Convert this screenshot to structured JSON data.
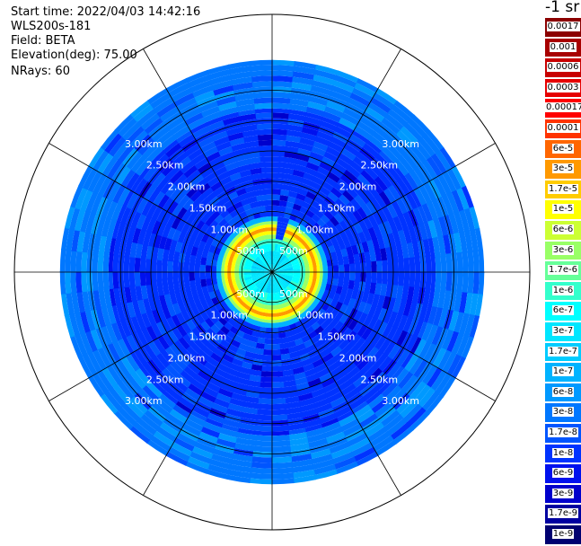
{
  "header": {
    "start_time": "Start time: 2022/04/03 14:42:16",
    "instrument": "WLS200s-181",
    "field": "Field: BETA",
    "elevation": "Elevation(deg): 75.00",
    "nrays": "NRays: 60"
  },
  "colorbar": {
    "units_label": "-1 sr",
    "levels": [
      {
        "label": "0.0017",
        "color": "#8b0000"
      },
      {
        "label": "0.001",
        "color": "#a80000"
      },
      {
        "label": "0.0006",
        "color": "#c80000"
      },
      {
        "label": "0.0003",
        "color": "#e60000"
      },
      {
        "label": "0.00017",
        "color": "#ff0000"
      },
      {
        "label": "0.0001",
        "color": "#ff3300"
      },
      {
        "label": "6e-5",
        "color": "#ff6600"
      },
      {
        "label": "3e-5",
        "color": "#ff9900"
      },
      {
        "label": "1.7e-5",
        "color": "#ffcc00"
      },
      {
        "label": "1e-5",
        "color": "#ffff00"
      },
      {
        "label": "6e-6",
        "color": "#ccff33"
      },
      {
        "label": "3e-6",
        "color": "#99ff66"
      },
      {
        "label": "1.7e-6",
        "color": "#66ff99"
      },
      {
        "label": "1e-6",
        "color": "#33ffcc"
      },
      {
        "label": "6e-7",
        "color": "#00ffff"
      },
      {
        "label": "3e-7",
        "color": "#00e6ff"
      },
      {
        "label": "1.7e-7",
        "color": "#00ccff"
      },
      {
        "label": "1e-7",
        "color": "#00b3ff"
      },
      {
        "label": "6e-8",
        "color": "#0099ff"
      },
      {
        "label": "3e-8",
        "color": "#0077ff"
      },
      {
        "label": "1.7e-8",
        "color": "#0055ff"
      },
      {
        "label": "1e-8",
        "color": "#0033ff"
      },
      {
        "label": "6e-9",
        "color": "#0011ee"
      },
      {
        "label": "3e-9",
        "color": "#0000cc"
      },
      {
        "label": "1.7e-9",
        "color": "#0000a0"
      },
      {
        "label": "1e-9",
        "color": "#000070"
      }
    ]
  },
  "chart_data": {
    "type": "heatmap",
    "projection": "polar",
    "grid": true,
    "range_unit": "km",
    "range_rings_km": [
      0.5,
      1.0,
      1.5,
      2.0,
      2.5,
      3.0
    ],
    "range_ring_labels": [
      "500m",
      "1.00km",
      "1.50km",
      "2.00km",
      "2.50km",
      "3.00km"
    ],
    "azimuth_spokes_deg": [
      0,
      30,
      60,
      90,
      120,
      150,
      180,
      210,
      240,
      270,
      300,
      330
    ],
    "n_rays": 60,
    "missing_sector_deg": [
      6,
      18
    ],
    "profile": [
      {
        "range_km": [
          0.0,
          0.35
        ],
        "level": "3e-7"
      },
      {
        "range_km": [
          0.35,
          0.47
        ],
        "level": "6e-7"
      },
      {
        "range_km": [
          0.47,
          0.55
        ],
        "level": "1e-6"
      },
      {
        "range_km": [
          0.55,
          0.62
        ],
        "level": "3e-6"
      },
      {
        "range_km": [
          0.62,
          0.68
        ],
        "level": "1e-5"
      },
      {
        "range_km": [
          0.68,
          0.74
        ],
        "level": "3e-5"
      },
      {
        "range_km": [
          0.74,
          0.79
        ],
        "level": "1e-5"
      },
      {
        "range_km": [
          0.79,
          0.84
        ],
        "level": "3e-6"
      },
      {
        "range_km": [
          0.84,
          0.92
        ],
        "level": "1e-7"
      },
      {
        "range_km": [
          0.92,
          2.7
        ],
        "level": "1e-8"
      },
      {
        "range_km": [
          2.7,
          3.5
        ],
        "level": "3e-8"
      }
    ]
  }
}
